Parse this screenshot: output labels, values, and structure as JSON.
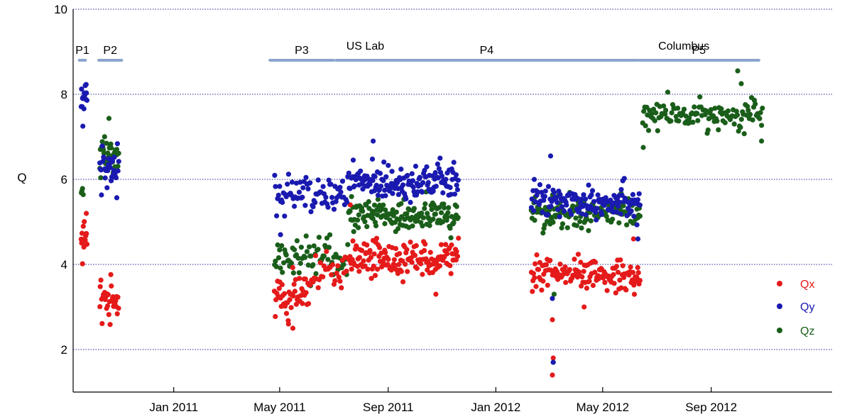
{
  "chart_data": {
    "type": "scatter",
    "title": "",
    "xlabel": "",
    "ylabel": "Q",
    "ylim": [
      1,
      10
    ],
    "yticks": [
      2,
      4,
      6,
      8,
      10
    ],
    "xlim": [
      "2010-09-09",
      "2013-01-16"
    ],
    "xticks": [
      {
        "date": "2011-01-01",
        "label": "Jan 2011"
      },
      {
        "date": "2011-05-01",
        "label": "May 2011"
      },
      {
        "date": "2011-09-01",
        "label": "Sep 2011"
      },
      {
        "date": "2012-01-01",
        "label": "Jan 2012"
      },
      {
        "date": "2012-05-01",
        "label": "May 2012"
      },
      {
        "date": "2012-09-01",
        "label": "Sep 2012"
      }
    ],
    "grid": true,
    "legend": "right",
    "modules": [
      {
        "label": "US Lab",
        "date": "2011-08-06",
        "level": 9.15
      },
      {
        "label": "Columbus",
        "date": "2012-08-01",
        "level": 9.15
      }
    ],
    "phases": [
      {
        "label": "P1",
        "start": "2010-09-16",
        "end": "2010-09-23",
        "level": 8.8
      },
      {
        "label": "P2",
        "start": "2010-10-08",
        "end": "2010-11-03",
        "level": 8.8
      },
      {
        "label": "P3",
        "start": "2011-04-20",
        "end": "2011-07-01",
        "level": 8.8
      },
      {
        "label": "P4",
        "start": "2011-07-04",
        "end": "2012-06-09",
        "level": 8.8
      },
      {
        "label": "P5",
        "start": "2012-06-11",
        "end": "2012-10-25",
        "level": 8.8
      }
    ],
    "series": [
      {
        "name": "Qx",
        "color": "#e51a1a",
        "clusters": [
          {
            "start": "2010-09-18",
            "end": "2010-09-25",
            "mean": 4.6,
            "spread": 0.35,
            "count": 14,
            "outliers": [
              [
                5.2,
                "2010-09-24"
              ]
            ]
          },
          {
            "start": "2010-10-09",
            "end": "2010-10-31",
            "mean": 3.15,
            "spread": 0.3,
            "count": 32
          },
          {
            "start": "2011-04-25",
            "end": "2011-06-05",
            "mean": 3.2,
            "spread": 0.35,
            "count": 48,
            "outliers": [
              [
                2.5,
                "2011-05-16"
              ],
              [
                2.6,
                "2011-05-11"
              ]
            ]
          },
          {
            "start": "2011-06-06",
            "end": "2011-07-18",
            "mean": 3.75,
            "spread": 0.35,
            "count": 30
          },
          {
            "start": "2011-07-18",
            "end": "2011-11-20",
            "mean": 4.15,
            "spread": 0.3,
            "count": 150,
            "outliers": [
              [
                5.4,
                "2011-07-20"
              ],
              [
                3.3,
                "2011-10-25"
              ]
            ]
          },
          {
            "start": "2012-02-10",
            "end": "2012-06-13",
            "mean": 3.75,
            "spread": 0.25,
            "count": 140,
            "outliers": [
              [
                2.7,
                "2012-03-05"
              ],
              [
                1.8,
                "2012-03-06"
              ],
              [
                1.4,
                "2012-03-05"
              ],
              [
                3.0,
                "2012-04-10"
              ],
              [
                4.6,
                "2012-06-05"
              ]
            ]
          }
        ]
      },
      {
        "name": "Qy",
        "color": "#1a1ab0",
        "clusters": [
          {
            "start": "2010-09-18",
            "end": "2010-09-25",
            "mean": 7.9,
            "spread": 0.25,
            "count": 14,
            "outliers": [
              [
                7.25,
                "2010-09-20"
              ]
            ]
          },
          {
            "start": "2010-10-09",
            "end": "2010-10-31",
            "mean": 6.25,
            "spread": 0.45,
            "count": 32
          },
          {
            "start": "2011-04-25",
            "end": "2011-07-18",
            "mean": 5.65,
            "spread": 0.3,
            "count": 75,
            "outliers": [
              [
                4.7,
                "2011-05-02"
              ]
            ]
          },
          {
            "start": "2011-07-18",
            "end": "2011-11-20",
            "mean": 5.95,
            "spread": 0.3,
            "count": 150,
            "outliers": [
              [
                6.9,
                "2011-08-15"
              ]
            ]
          },
          {
            "start": "2012-02-10",
            "end": "2012-06-13",
            "mean": 5.5,
            "spread": 0.3,
            "count": 140,
            "outliers": [
              [
                3.2,
                "2012-03-05"
              ],
              [
                1.7,
                "2012-03-06"
              ],
              [
                6.55,
                "2012-03-03"
              ],
              [
                4.6,
                "2012-06-10"
              ]
            ]
          }
        ]
      },
      {
        "name": "Qz",
        "color": "#1a5e1a",
        "clusters": [
          {
            "start": "2010-09-18",
            "end": "2010-09-21",
            "mean": 5.8,
            "spread": 0.15,
            "count": 4
          },
          {
            "start": "2010-10-09",
            "end": "2010-10-31",
            "mean": 6.6,
            "spread": 0.4,
            "count": 32
          },
          {
            "start": "2011-04-25",
            "end": "2011-07-18",
            "mean": 4.15,
            "spread": 0.3,
            "count": 75,
            "outliers": [
              [
                3.5,
                "2011-06-05"
              ]
            ]
          },
          {
            "start": "2011-07-18",
            "end": "2011-11-20",
            "mean": 5.15,
            "spread": 0.3,
            "count": 150
          },
          {
            "start": "2012-02-10",
            "end": "2012-06-13",
            "mean": 5.2,
            "spread": 0.25,
            "count": 140,
            "outliers": [
              [
                3.3,
                "2012-03-07"
              ],
              [
                1.7,
                "2012-03-06"
              ]
            ]
          },
          {
            "start": "2012-06-15",
            "end": "2012-10-30",
            "mean": 7.5,
            "spread": 0.25,
            "count": 120,
            "outliers": [
              [
                6.75,
                "2012-06-16"
              ],
              [
                8.55,
                "2012-10-01"
              ],
              [
                6.9,
                "2012-10-28"
              ],
              [
                8.25,
                "2012-10-05"
              ]
            ]
          }
        ]
      }
    ]
  }
}
